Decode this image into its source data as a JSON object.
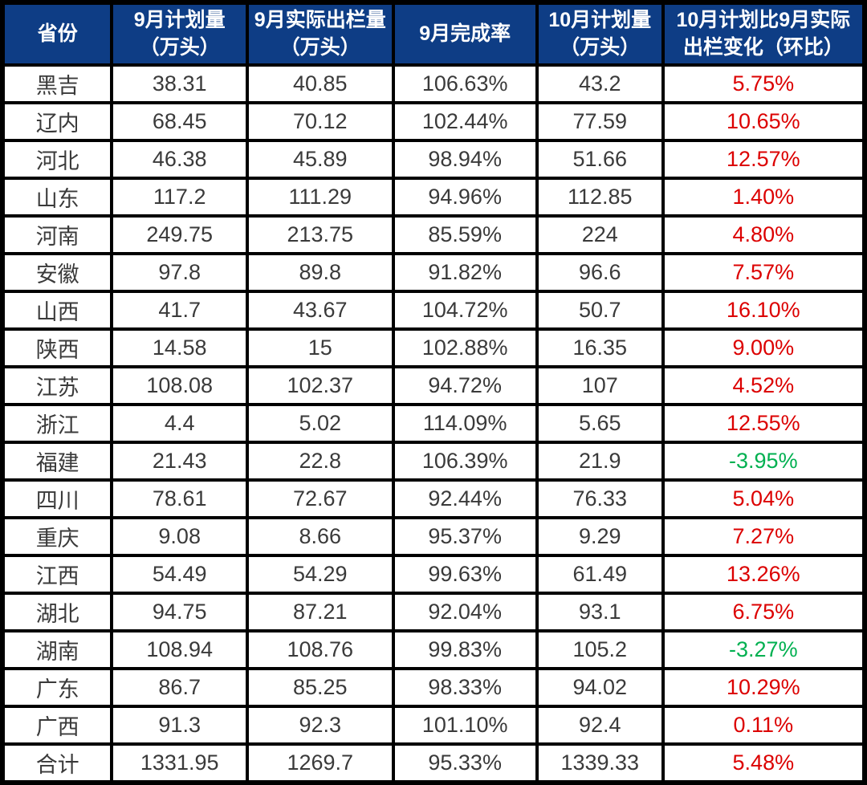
{
  "colors": {
    "header_bg": "#0E3D85",
    "header_text": "#FFFFFF",
    "positive_change": "#DC0000",
    "negative_change": "#00B050",
    "cell_text": "#3A3A3A",
    "grid_border": "#000000"
  },
  "chart_data": {
    "type": "table",
    "title": "",
    "columns": [
      {
        "id": "province",
        "lines": [
          "省份"
        ]
      },
      {
        "id": "sep-plan",
        "lines": [
          "9月计划量",
          "（万头）"
        ]
      },
      {
        "id": "sep-actual",
        "lines": [
          "9月实际出栏量",
          "（万头）"
        ]
      },
      {
        "id": "sep-completion",
        "lines": [
          "9月完成率"
        ]
      },
      {
        "id": "oct-plan",
        "lines": [
          "10月计划量",
          "（万头）"
        ]
      },
      {
        "id": "oct-change",
        "lines": [
          "10月计划比9月实际",
          "出栏变化（环比）"
        ]
      }
    ],
    "rows": [
      {
        "province": "黑吉",
        "sep_plan": "38.31",
        "sep_actual": "40.85",
        "completion": "106.63%",
        "oct_plan": "43.2",
        "change": "5.75%",
        "change_color": "red"
      },
      {
        "province": "辽内",
        "sep_plan": "68.45",
        "sep_actual": "70.12",
        "completion": "102.44%",
        "oct_plan": "77.59",
        "change": "10.65%",
        "change_color": "red"
      },
      {
        "province": "河北",
        "sep_plan": "46.38",
        "sep_actual": "45.89",
        "completion": "98.94%",
        "oct_plan": "51.66",
        "change": "12.57%",
        "change_color": "red"
      },
      {
        "province": "山东",
        "sep_plan": "117.2",
        "sep_actual": "111.29",
        "completion": "94.96%",
        "oct_plan": "112.85",
        "change": "1.40%",
        "change_color": "red"
      },
      {
        "province": "河南",
        "sep_plan": "249.75",
        "sep_actual": "213.75",
        "completion": "85.59%",
        "oct_plan": "224",
        "change": "4.80%",
        "change_color": "red"
      },
      {
        "province": "安徽",
        "sep_plan": "97.8",
        "sep_actual": "89.8",
        "completion": "91.82%",
        "oct_plan": "96.6",
        "change": "7.57%",
        "change_color": "red"
      },
      {
        "province": "山西",
        "sep_plan": "41.7",
        "sep_actual": "43.67",
        "completion": "104.72%",
        "oct_plan": "50.7",
        "change": "16.10%",
        "change_color": "red"
      },
      {
        "province": "陕西",
        "sep_plan": "14.58",
        "sep_actual": "15",
        "completion": "102.88%",
        "oct_plan": "16.35",
        "change": "9.00%",
        "change_color": "red"
      },
      {
        "province": "江苏",
        "sep_plan": "108.08",
        "sep_actual": "102.37",
        "completion": "94.72%",
        "oct_plan": "107",
        "change": "4.52%",
        "change_color": "red"
      },
      {
        "province": "浙江",
        "sep_plan": "4.4",
        "sep_actual": "5.02",
        "completion": "114.09%",
        "oct_plan": "5.65",
        "change": "12.55%",
        "change_color": "red"
      },
      {
        "province": "福建",
        "sep_plan": "21.43",
        "sep_actual": "22.8",
        "completion": "106.39%",
        "oct_plan": "21.9",
        "change": "-3.95%",
        "change_color": "green"
      },
      {
        "province": "四川",
        "sep_plan": "78.61",
        "sep_actual": "72.67",
        "completion": "92.44%",
        "oct_plan": "76.33",
        "change": "5.04%",
        "change_color": "red"
      },
      {
        "province": "重庆",
        "sep_plan": "9.08",
        "sep_actual": "8.66",
        "completion": "95.37%",
        "oct_plan": "9.29",
        "change": "7.27%",
        "change_color": "red"
      },
      {
        "province": "江西",
        "sep_plan": "54.49",
        "sep_actual": "54.29",
        "completion": "99.63%",
        "oct_plan": "61.49",
        "change": "13.26%",
        "change_color": "red"
      },
      {
        "province": "湖北",
        "sep_plan": "94.75",
        "sep_actual": "87.21",
        "completion": "92.04%",
        "oct_plan": "93.1",
        "change": "6.75%",
        "change_color": "red"
      },
      {
        "province": "湖南",
        "sep_plan": "108.94",
        "sep_actual": "108.76",
        "completion": "99.83%",
        "oct_plan": "105.2",
        "change": "-3.27%",
        "change_color": "green"
      },
      {
        "province": "广东",
        "sep_plan": "86.7",
        "sep_actual": "85.25",
        "completion": "98.33%",
        "oct_plan": "94.02",
        "change": "10.29%",
        "change_color": "red"
      },
      {
        "province": "广西",
        "sep_plan": "91.3",
        "sep_actual": "92.3",
        "completion": "101.10%",
        "oct_plan": "92.4",
        "change": "0.11%",
        "change_color": "red"
      },
      {
        "province": "合计",
        "sep_plan": "1331.95",
        "sep_actual": "1269.7",
        "completion": "95.33%",
        "oct_plan": "1339.33",
        "change": "5.48%",
        "change_color": "red"
      }
    ],
    "column_widths_pct": [
      12.7,
      15.7,
      16.9,
      16.7,
      14.6,
      23.4
    ]
  }
}
